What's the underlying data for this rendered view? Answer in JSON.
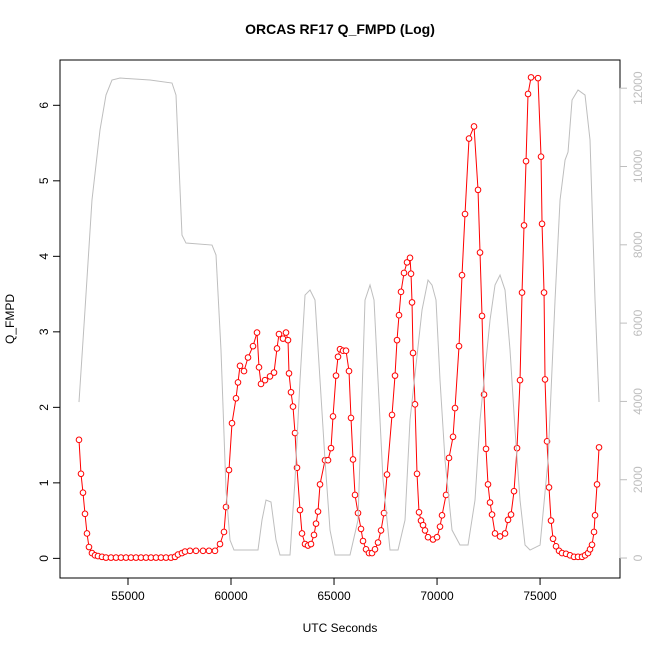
{
  "chart_data": {
    "type": "line",
    "title": "ORCAS RF17 Q_FMPD (Log)",
    "xlabel": "UTC Seconds",
    "ylabel": "Q_FMPD",
    "xlim": [
      51700,
      78880
    ],
    "ylim": [
      -0.26,
      6.6
    ],
    "y2lim": [
      -510,
      12720
    ],
    "xticks": [
      55000,
      60000,
      65000,
      70000,
      75000
    ],
    "yticks": [
      0,
      1,
      2,
      3,
      4,
      5,
      6
    ],
    "y2ticks": [
      0,
      2000,
      4000,
      6000,
      8000,
      10000,
      12000
    ],
    "series": [
      {
        "color": "#ff0000",
        "markers": true,
        "x": [
          52622,
          52719,
          52816,
          52913,
          53010,
          53107,
          53252,
          53398,
          53544,
          53738,
          53932,
          54175,
          54418,
          54660,
          54903,
          55146,
          55388,
          55631,
          55874,
          56116,
          56359,
          56602,
          56845,
          57087,
          57281,
          57427,
          57621,
          57767,
          58009,
          58301,
          58641,
          58932,
          59223,
          59466,
          59660,
          59757,
          59903,
          60048,
          60242,
          60339,
          60436,
          60631,
          60825,
          61068,
          61262,
          61359,
          61456,
          61650,
          61893,
          62087,
          62232,
          62329,
          62524,
          62669,
          62766,
          62815,
          62912,
          63009,
          63106,
          63203,
          63349,
          63446,
          63592,
          63737,
          63883,
          64028,
          64126,
          64223,
          64320,
          64562,
          64708,
          64854,
          64951,
          65096,
          65193,
          65290,
          65436,
          65582,
          65727,
          65824,
          65922,
          66019,
          66164,
          66310,
          66407,
          66553,
          66698,
          66844,
          66989,
          67135,
          67281,
          67426,
          67572,
          67815,
          67960,
          68057,
          68154,
          68251,
          68397,
          68543,
          68688,
          68737,
          68786,
          68834,
          68931,
          69028,
          69125,
          69222,
          69320,
          69417,
          69562,
          69805,
          69999,
          70144,
          70242,
          70436,
          70581,
          70776,
          70873,
          71067,
          71212,
          71358,
          71552,
          71795,
          71989,
          72086,
          72183,
          72280,
          72377,
          72474,
          72571,
          72669,
          72814,
          73057,
          73300,
          73445,
          73591,
          73736,
          73882,
          74028,
          74125,
          74222,
          74319,
          74416,
          74562,
          74901,
          75047,
          75096,
          75193,
          75241,
          75338,
          75435,
          75532,
          75630,
          75775,
          75921,
          76066,
          76260,
          76455,
          76649,
          76843,
          77037,
          77183,
          77328,
          77425,
          77522,
          77619,
          77668,
          77765,
          77862
        ],
        "values": [
          1.57,
          1.12,
          0.87,
          0.59,
          0.33,
          0.15,
          0.07,
          0.04,
          0.03,
          0.02,
          0.01,
          0.01,
          0.01,
          0.01,
          0.01,
          0.01,
          0.01,
          0.01,
          0.01,
          0.01,
          0.01,
          0.01,
          0.01,
          0.01,
          0.02,
          0.05,
          0.07,
          0.09,
          0.1,
          0.1,
          0.1,
          0.1,
          0.1,
          0.19,
          0.35,
          0.68,
          1.17,
          1.79,
          2.12,
          2.33,
          2.55,
          2.48,
          2.66,
          2.81,
          2.99,
          2.53,
          2.31,
          2.36,
          2.41,
          2.46,
          2.78,
          2.97,
          2.91,
          2.99,
          2.89,
          2.45,
          2.2,
          2.01,
          1.66,
          1.2,
          0.64,
          0.33,
          0.19,
          0.17,
          0.19,
          0.31,
          0.46,
          0.62,
          0.98,
          1.3,
          1.3,
          1.46,
          1.88,
          2.42,
          2.67,
          2.77,
          2.75,
          2.75,
          2.48,
          1.86,
          1.31,
          0.84,
          0.6,
          0.39,
          0.23,
          0.12,
          0.07,
          0.07,
          0.12,
          0.21,
          0.37,
          0.6,
          1.11,
          1.9,
          2.42,
          2.89,
          3.22,
          3.53,
          3.78,
          3.92,
          3.98,
          3.77,
          3.39,
          2.72,
          2.04,
          1.12,
          0.61,
          0.5,
          0.44,
          0.37,
          0.28,
          0.25,
          0.28,
          0.42,
          0.57,
          0.84,
          1.33,
          1.61,
          1.99,
          2.81,
          3.75,
          4.56,
          5.56,
          5.72,
          4.88,
          4.05,
          3.21,
          2.17,
          1.45,
          0.98,
          0.74,
          0.58,
          0.33,
          0.29,
          0.33,
          0.51,
          0.58,
          0.89,
          1.46,
          2.36,
          3.52,
          4.41,
          5.26,
          6.15,
          6.37,
          6.36,
          5.32,
          4.43,
          3.52,
          2.37,
          1.55,
          0.94,
          0.5,
          0.26,
          0.16,
          0.1,
          0.07,
          0.06,
          0.04,
          0.02,
          0.02,
          0.02,
          0.04,
          0.07,
          0.12,
          0.18,
          0.35,
          0.57,
          0.98,
          1.47
        ]
      },
      {
        "color": "#bebebe",
        "axis": "y2",
        "markers": false,
        "x": [
          52622,
          52913,
          53252,
          53641,
          53932,
          54223,
          54612,
          56068,
          57136,
          57330,
          57621,
          57815,
          59078,
          59272,
          59514,
          59757,
          59951,
          60145,
          61310,
          61504,
          61699,
          61941,
          62184,
          62378,
          62863,
          63106,
          63349,
          63592,
          63835,
          64077,
          64320,
          64562,
          64805,
          65048,
          65776,
          66164,
          66504,
          66747,
          66941,
          67135,
          67378,
          67718,
          68106,
          68446,
          68688,
          69271,
          69562,
          69756,
          69950,
          70144,
          70387,
          70727,
          71115,
          71504,
          71843,
          72086,
          72572,
          72814,
          73057,
          73300,
          73543,
          73785,
          74028,
          74271,
          74513,
          75000,
          75388,
          75727,
          75970,
          76213,
          76358,
          76552,
          76843,
          77183,
          77425,
          77668,
          77862
        ],
        "values": [
          3984,
          6334,
          9143,
          10931,
          11825,
          12208,
          12259,
          12208,
          12132,
          11825,
          8249,
          8045,
          7994,
          7739,
          5312,
          1737,
          460,
          204,
          204,
          971,
          1481,
          1430,
          460,
          77,
          77,
          1992,
          4546,
          6717,
          6845,
          6589,
          4546,
          2503,
          715,
          77,
          77,
          971,
          6589,
          6972,
          6589,
          4546,
          1992,
          204,
          204,
          971,
          3525,
          6334,
          7100,
          6972,
          6589,
          4546,
          2503,
          715,
          332,
          332,
          1481,
          3525,
          6079,
          6972,
          7228,
          6845,
          5312,
          3269,
          1481,
          332,
          204,
          332,
          2503,
          6589,
          9143,
          10165,
          10369,
          11697,
          11953,
          11825,
          10676,
          6589,
          3984
        ]
      }
    ]
  }
}
